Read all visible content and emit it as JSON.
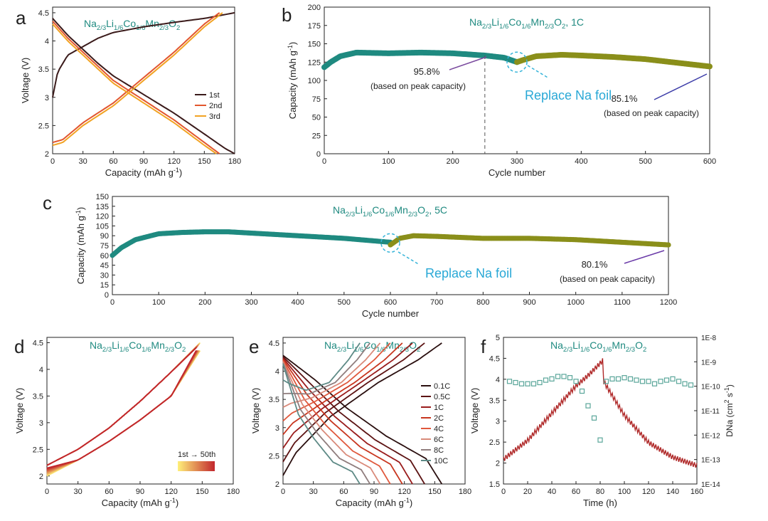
{
  "figure": {
    "panel_letters": [
      "a",
      "b",
      "c",
      "d",
      "e",
      "f"
    ]
  },
  "chart_data": [
    {
      "panel": "a",
      "type": "line",
      "title": "Na2/3Li1/6Co1/6Mn2/3O2",
      "xlabel": "Capacity (mAh g-1)",
      "ylabel": "Voltage (V)",
      "xlim": [
        0,
        180
      ],
      "ylim": [
        2.0,
        4.6
      ],
      "xticks": [
        0,
        30,
        60,
        90,
        120,
        150,
        180
      ],
      "yticks": [
        2.0,
        2.5,
        3.0,
        3.5,
        4.0,
        4.5
      ],
      "legend_position": "right",
      "series": [
        {
          "name": "1st",
          "color": "#3a1a1a",
          "charge": [
            [
              0,
              3.0
            ],
            [
              5,
              3.45
            ],
            [
              15,
              3.75
            ],
            [
              30,
              3.9
            ],
            [
              45,
              4.05
            ],
            [
              60,
              4.15
            ],
            [
              90,
              4.25
            ],
            [
              120,
              4.33
            ],
            [
              150,
              4.4
            ],
            [
              180,
              4.5
            ]
          ],
          "discharge": [
            [
              0,
              4.4
            ],
            [
              15,
              4.1
            ],
            [
              30,
              3.85
            ],
            [
              45,
              3.6
            ],
            [
              60,
              3.38
            ],
            [
              90,
              3.05
            ],
            [
              120,
              2.72
            ],
            [
              150,
              2.35
            ],
            [
              170,
              2.1
            ],
            [
              180,
              2.0
            ]
          ]
        },
        {
          "name": "2nd",
          "color": "#e2562e",
          "charge": [
            [
              0,
              2.2
            ],
            [
              10,
              2.25
            ],
            [
              30,
              2.55
            ],
            [
              60,
              2.9
            ],
            [
              90,
              3.35
            ],
            [
              120,
              3.8
            ],
            [
              150,
              4.3
            ],
            [
              165,
              4.5
            ]
          ],
          "discharge": [
            [
              0,
              4.35
            ],
            [
              15,
              4.05
            ],
            [
              30,
              3.8
            ],
            [
              60,
              3.3
            ],
            [
              90,
              2.95
            ],
            [
              120,
              2.6
            ],
            [
              150,
              2.2
            ],
            [
              165,
              2.0
            ]
          ]
        },
        {
          "name": "3rd",
          "color": "#f2a323",
          "charge": [
            [
              0,
              2.15
            ],
            [
              10,
              2.2
            ],
            [
              30,
              2.5
            ],
            [
              60,
              2.85
            ],
            [
              90,
              3.3
            ],
            [
              120,
              3.75
            ],
            [
              150,
              4.25
            ],
            [
              168,
              4.5
            ]
          ],
          "discharge": [
            [
              0,
              4.3
            ],
            [
              15,
              4.0
            ],
            [
              30,
              3.75
            ],
            [
              60,
              3.25
            ],
            [
              90,
              2.9
            ],
            [
              120,
              2.55
            ],
            [
              150,
              2.15
            ],
            [
              162,
              2.0
            ]
          ]
        }
      ]
    },
    {
      "panel": "b",
      "type": "scatter",
      "title": "Na2/3Li1/6Co1/6Mn2/3O2, 1C",
      "xlabel": "Cycle number",
      "ylabel": "Capacity (mAh g-1)",
      "xlim": [
        0,
        600
      ],
      "ylim": [
        0,
        200
      ],
      "xticks": [
        0,
        100,
        200,
        300,
        400,
        500,
        600
      ],
      "yticks": [
        0,
        25,
        50,
        75,
        100,
        125,
        150,
        175,
        200
      ],
      "series": [
        {
          "color": "#1f8a80",
          "points": [
            [
              0,
              118
            ],
            [
              10,
              125
            ],
            [
              25,
              133
            ],
            [
              50,
              138
            ],
            [
              100,
              137
            ],
            [
              150,
              138
            ],
            [
              200,
              137
            ],
            [
              250,
              134
            ],
            [
              280,
              131
            ],
            [
              300,
              125
            ]
          ]
        },
        {
          "color": "#8a8f1a",
          "points": [
            [
              300,
              125
            ],
            [
              310,
              128
            ],
            [
              330,
              133
            ],
            [
              370,
              135
            ],
            [
              400,
              134
            ],
            [
              450,
              132
            ],
            [
              500,
              129
            ],
            [
              550,
              124
            ],
            [
              600,
              119
            ]
          ]
        }
      ],
      "marker_line_x": 250,
      "annotations": [
        {
          "text": "95.8%",
          "sub": "(based on peak capacity)"
        },
        {
          "text": "Replace Na foil"
        },
        {
          "text": "85.1%",
          "sub": "(based on peak capacity)"
        }
      ]
    },
    {
      "panel": "c",
      "type": "scatter",
      "title": "Na2/3Li1/6Co1/6Mn2/3O2, 5C",
      "xlabel": "Cycle number",
      "ylabel": "Capacity (mAh g-1)",
      "xlim": [
        0,
        1200
      ],
      "ylim": [
        0,
        150
      ],
      "xticks": [
        0,
        100,
        200,
        300,
        400,
        500,
        600,
        700,
        800,
        900,
        1000,
        1100,
        1200
      ],
      "yticks": [
        0,
        15,
        30,
        45,
        60,
        75,
        90,
        105,
        120,
        135,
        150
      ],
      "series": [
        {
          "color": "#1f8a80",
          "points": [
            [
              0,
              60
            ],
            [
              20,
              72
            ],
            [
              50,
              84
            ],
            [
              100,
              93
            ],
            [
              150,
              95
            ],
            [
              200,
              96
            ],
            [
              250,
              96
            ],
            [
              300,
              94
            ],
            [
              400,
              90
            ],
            [
              500,
              86
            ],
            [
              600,
              80
            ]
          ]
        },
        {
          "color": "#8a8f1a",
          "points": [
            [
              600,
              76
            ],
            [
              620,
              86
            ],
            [
              650,
              90
            ],
            [
              700,
              89
            ],
            [
              800,
              86
            ],
            [
              900,
              86
            ],
            [
              1000,
              84
            ],
            [
              1100,
              80
            ],
            [
              1200,
              76
            ]
          ]
        }
      ],
      "annotations": [
        {
          "text": "Replace Na foil"
        },
        {
          "text": "80.1%",
          "sub": "(based on peak capacity)"
        }
      ]
    },
    {
      "panel": "d",
      "type": "line",
      "title": "Na2/3Li1/6Co1/6Mn2/3O2",
      "xlabel": "Capacity (mAh g-1)",
      "ylabel": "Voltage (V)",
      "xlim": [
        0,
        180
      ],
      "ylim": [
        1.85,
        4.6
      ],
      "xticks": [
        0,
        30,
        60,
        90,
        120,
        150,
        180
      ],
      "yticks": [
        2.0,
        2.5,
        3.0,
        3.5,
        4.0,
        4.5
      ],
      "colorbar": {
        "label": "1st → 50th",
        "from": "#fff07a",
        "to": "#c2272d"
      },
      "cycles": 50
    },
    {
      "panel": "e",
      "type": "line",
      "title": "Na2/3Li1/6Co1/6Mn2/3O2",
      "xlabel": "Capacity (mAh g-1)",
      "ylabel": "Voltage (V)",
      "xlim": [
        0,
        180
      ],
      "ylim": [
        2.0,
        4.6
      ],
      "xticks": [
        0,
        30,
        60,
        90,
        120,
        150,
        180
      ],
      "yticks": [
        2.0,
        2.5,
        3.0,
        3.5,
        4.0,
        4.5
      ],
      "legend_position": "right",
      "series": [
        {
          "name": "0.1C",
          "color": "#2a0f0f",
          "capacity": 157
        },
        {
          "name": "0.5C",
          "color": "#5c1313",
          "capacity": 140
        },
        {
          "name": "1C",
          "color": "#9a1c1c",
          "capacity": 128
        },
        {
          "name": "2C",
          "color": "#c8361f",
          "capacity": 118
        },
        {
          "name": "4C",
          "color": "#e0583c",
          "capacity": 106
        },
        {
          "name": "6C",
          "color": "#d98a7a",
          "capacity": 96
        },
        {
          "name": "8C",
          "color": "#8f7d7d",
          "capacity": 86
        },
        {
          "name": "10C",
          "color": "#5e8a86",
          "capacity": 76
        }
      ]
    },
    {
      "panel": "f",
      "type": "scatter",
      "title": "Na2/3Li1/6Co1/6Mn2/3O2",
      "xlabel": "Time (h)",
      "ylabel": "Voltage (V)",
      "y2label": "DNa (cm2 s-1)",
      "xlim": [
        0,
        160
      ],
      "ylim": [
        1.5,
        5.0
      ],
      "xticks": [
        0,
        20,
        40,
        60,
        80,
        100,
        120,
        140,
        160
      ],
      "yticks": [
        1.5,
        2.0,
        2.5,
        3.0,
        3.5,
        4.0,
        4.5,
        5.0
      ],
      "y2ticks": [
        "1E-14",
        "1E-13",
        "1E-12",
        "1E-11",
        "1E-10",
        "1E-9",
        "1E-8"
      ],
      "voltage_series": {
        "color": "#b02a2a",
        "points": [
          [
            0,
            2.15
          ],
          [
            20,
            2.6
          ],
          [
            40,
            3.25
          ],
          [
            60,
            3.9
          ],
          [
            70,
            4.15
          ],
          [
            82,
            4.5
          ],
          [
            83,
            4.0
          ],
          [
            100,
            3.2
          ],
          [
            120,
            2.55
          ],
          [
            140,
            2.2
          ],
          [
            160,
            2.0
          ]
        ]
      },
      "d_series": {
        "color": "#5aa69a",
        "points": [
          [
            5,
            -9.8
          ],
          [
            10,
            -9.85
          ],
          [
            15,
            -9.9
          ],
          [
            20,
            -9.9
          ],
          [
            25,
            -9.9
          ],
          [
            30,
            -9.85
          ],
          [
            35,
            -9.75
          ],
          [
            40,
            -9.7
          ],
          [
            45,
            -9.6
          ],
          [
            50,
            -9.6
          ],
          [
            55,
            -9.65
          ],
          [
            60,
            -9.8
          ],
          [
            65,
            -10.2
          ],
          [
            70,
            -10.8
          ],
          [
            75,
            -11.3
          ],
          [
            80,
            -12.2
          ],
          [
            85,
            -9.8
          ],
          [
            90,
            -9.7
          ],
          [
            95,
            -9.7
          ],
          [
            100,
            -9.65
          ],
          [
            105,
            -9.7
          ],
          [
            110,
            -9.75
          ],
          [
            115,
            -9.8
          ],
          [
            120,
            -9.8
          ],
          [
            125,
            -9.9
          ],
          [
            130,
            -9.8
          ],
          [
            135,
            -9.75
          ],
          [
            140,
            -9.7
          ],
          [
            145,
            -9.8
          ],
          [
            150,
            -9.9
          ],
          [
            155,
            -9.95
          ]
        ]
      }
    }
  ]
}
